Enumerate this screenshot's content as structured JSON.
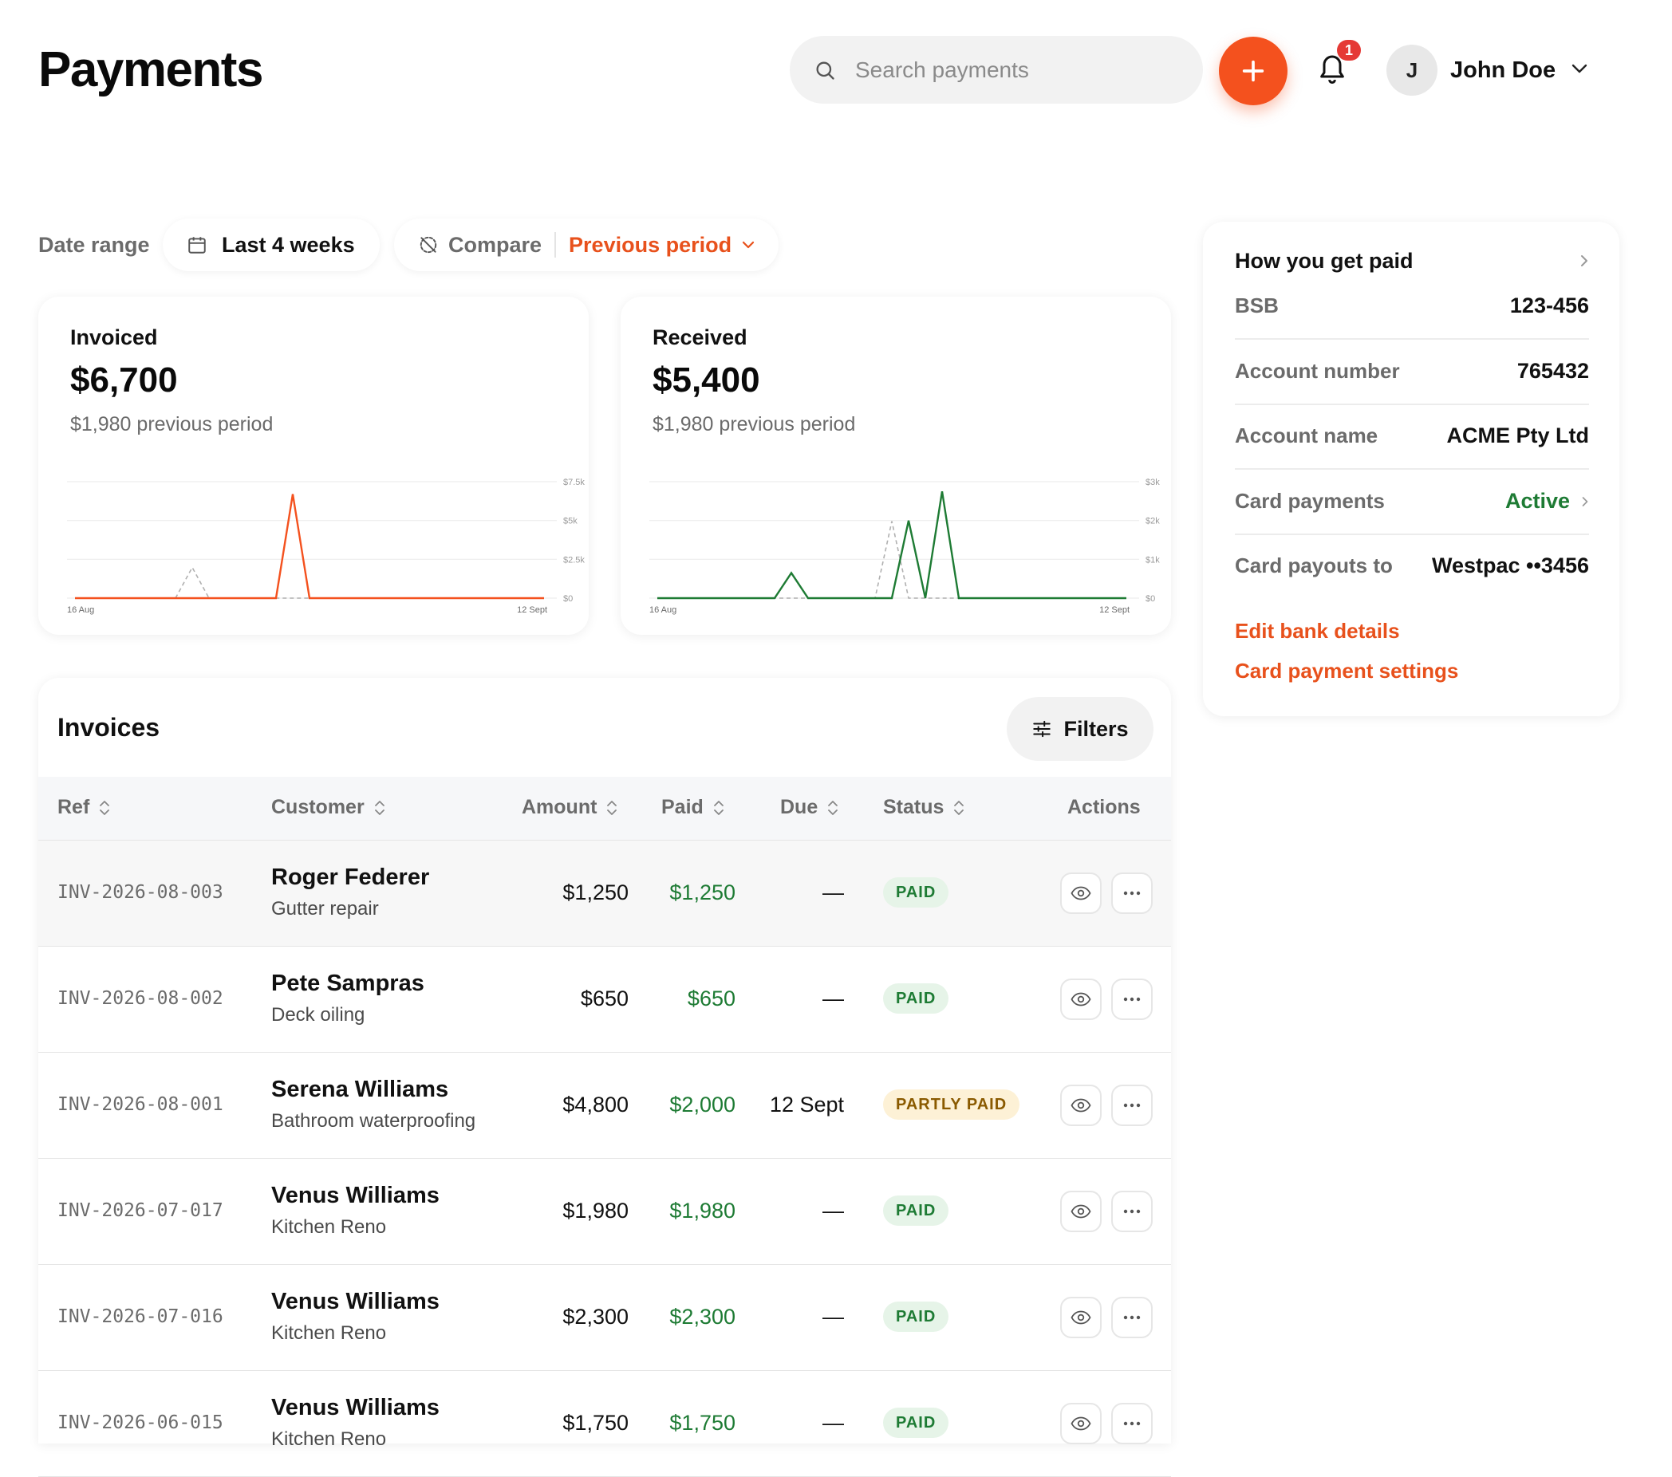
{
  "header": {
    "title": "Payments",
    "search_placeholder": "Search payments",
    "notification_count": "1",
    "user_initial": "J",
    "user_name": "John Doe"
  },
  "filters": {
    "date_range_label": "Date range",
    "date_range_value": "Last 4 weeks",
    "compare_label": "Compare",
    "compare_value": "Previous period"
  },
  "stats": {
    "invoiced": {
      "label": "Invoiced",
      "value": "$6,700",
      "previous": "$1,980 previous period"
    },
    "received": {
      "label": "Received",
      "value": "$5,400",
      "previous": "$1,980 previous period"
    }
  },
  "chart_data": [
    {
      "type": "line",
      "title": "",
      "x_start_label": "16 Aug",
      "x_end_label": "12 Sept",
      "y_ticks": [
        "$7.5k",
        "$5k",
        "$2.5k",
        "$0"
      ],
      "ylim": [
        0,
        7500
      ],
      "grid": true,
      "series": [
        {
          "style": "current",
          "color": "#f4511e",
          "values": [
            0,
            0,
            0,
            0,
            0,
            0,
            0,
            0,
            0,
            0,
            0,
            0,
            0,
            6700,
            0,
            0,
            0,
            0,
            0,
            0,
            0,
            0,
            0,
            0,
            0,
            0,
            0,
            0,
            0
          ]
        },
        {
          "style": "previous",
          "color": "#b0b0b0",
          "values": [
            0,
            0,
            0,
            0,
            0,
            0,
            0,
            1980,
            0,
            0,
            0,
            0,
            0,
            0,
            0,
            0,
            0,
            0,
            0,
            0,
            0,
            0,
            0,
            0,
            0,
            0,
            0,
            0,
            0
          ]
        }
      ]
    },
    {
      "type": "line",
      "title": "",
      "x_start_label": "16 Aug",
      "x_end_label": "12 Sept",
      "y_ticks": [
        "$3k",
        "$2k",
        "$1k",
        "$0"
      ],
      "ylim": [
        0,
        3000
      ],
      "grid": true,
      "series": [
        {
          "style": "current",
          "color": "#1e7b34",
          "values": [
            0,
            0,
            0,
            0,
            0,
            0,
            0,
            0,
            650,
            0,
            0,
            0,
            0,
            0,
            0,
            2000,
            0,
            2750,
            0,
            0,
            0,
            0,
            0,
            0,
            0,
            0,
            0,
            0,
            0
          ]
        },
        {
          "style": "previous",
          "color": "#b0b0b0",
          "values": [
            0,
            0,
            0,
            0,
            0,
            0,
            0,
            0,
            0,
            0,
            0,
            0,
            0,
            0,
            1980,
            0,
            0,
            0,
            0,
            0,
            0,
            0,
            0,
            0,
            0,
            0,
            0,
            0,
            0
          ]
        }
      ]
    }
  ],
  "invoices": {
    "title": "Invoices",
    "filters_label": "Filters",
    "columns": {
      "ref": "Ref",
      "customer": "Customer",
      "amount": "Amount",
      "paid": "Paid",
      "due": "Due",
      "status": "Status",
      "actions": "Actions"
    },
    "rows": [
      {
        "ref": "INV-2026-08-003",
        "name": "Roger Federer",
        "desc": "Gutter repair",
        "amount": "$1,250",
        "paid": "$1,250",
        "due": "—",
        "status": "PAID",
        "status_kind": "paid"
      },
      {
        "ref": "INV-2026-08-002",
        "name": "Pete Sampras",
        "desc": "Deck oiling",
        "amount": "$650",
        "paid": "$650",
        "due": "—",
        "status": "PAID",
        "status_kind": "paid"
      },
      {
        "ref": "INV-2026-08-001",
        "name": "Serena Williams",
        "desc": "Bathroom waterproofing",
        "amount": "$4,800",
        "paid": "$2,000",
        "due": "12 Sept",
        "status": "PARTLY PAID",
        "status_kind": "partly"
      },
      {
        "ref": "INV-2026-07-017",
        "name": "Venus Williams",
        "desc": "Kitchen Reno",
        "amount": "$1,980",
        "paid": "$1,980",
        "due": "—",
        "status": "PAID",
        "status_kind": "paid"
      },
      {
        "ref": "INV-2026-07-016",
        "name": "Venus Williams",
        "desc": "Kitchen Reno",
        "amount": "$2,300",
        "paid": "$2,300",
        "due": "—",
        "status": "PAID",
        "status_kind": "paid"
      },
      {
        "ref": "INV-2026-06-015",
        "name": "Venus Williams",
        "desc": "Kitchen Reno",
        "amount": "$1,750",
        "paid": "$1,750",
        "due": "—",
        "status": "PAID",
        "status_kind": "paid"
      }
    ]
  },
  "payout": {
    "title": "How you get paid",
    "bsb_label": "BSB",
    "bsb_value": "123-456",
    "account_number_label": "Account number",
    "account_number_value": "765432",
    "account_name_label": "Account name",
    "account_name_value": "ACME Pty Ltd",
    "card_payments_label": "Card payments",
    "card_payments_value": "Active",
    "card_payouts_label": "Card payouts to",
    "card_payouts_value": "Westpac ••3456",
    "edit_bank_link": "Edit bank details",
    "card_settings_link": "Card payment settings"
  },
  "colors": {
    "accent": "#f4511e",
    "success": "#1e7b34",
    "warning": "#8a5a00"
  }
}
